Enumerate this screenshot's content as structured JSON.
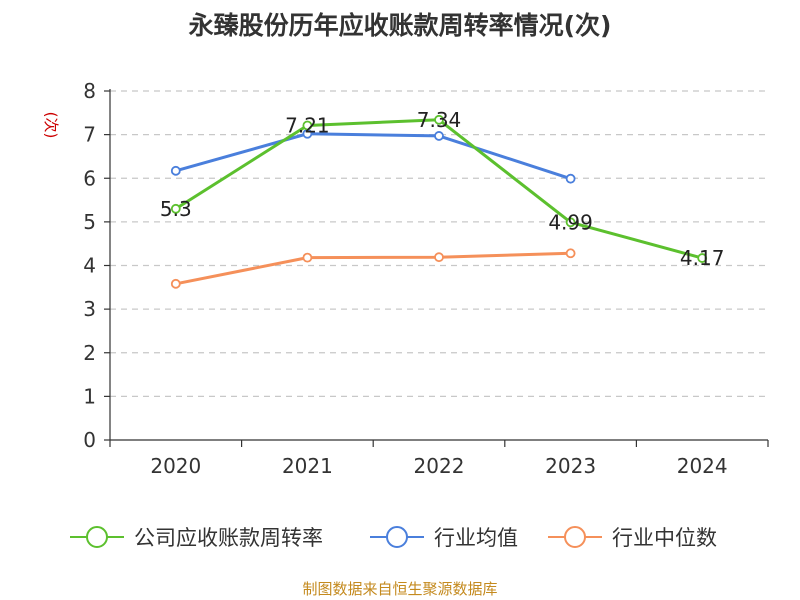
{
  "chart_data": {
    "type": "line",
    "title": "永臻股份历年应收账款周转率情况(次)",
    "ylabel": "(次)",
    "xlabel": "",
    "categories": [
      "2020",
      "2021",
      "2022",
      "2023",
      "2024"
    ],
    "ylim": [
      0,
      8
    ],
    "yticks": [
      "0",
      "1",
      "2",
      "3",
      "4",
      "5",
      "6",
      "7",
      "8"
    ],
    "grid": true,
    "legend_position": "bottom",
    "series": [
      {
        "name": "公司应收账款周转率",
        "color": "#5cc02e",
        "values": [
          5.3,
          7.21,
          7.34,
          4.99,
          4.17
        ],
        "labels": [
          "5.3",
          "7.21",
          "7.34",
          "4.99",
          "4.17"
        ]
      },
      {
        "name": "行业均值",
        "color": "#4a7fdc",
        "values": [
          6.17,
          7.02,
          6.97,
          5.99,
          null
        ]
      },
      {
        "name": "行业中位数",
        "color": "#f5905a",
        "values": [
          3.58,
          4.18,
          4.19,
          4.28,
          null
        ]
      }
    ]
  },
  "colors": {
    "ylabel": "#cc0000",
    "footer": "#c48a1e",
    "axis": "#333333",
    "grid": "#c8c8c8"
  },
  "footer": "制图数据来自恒生聚源数据库"
}
